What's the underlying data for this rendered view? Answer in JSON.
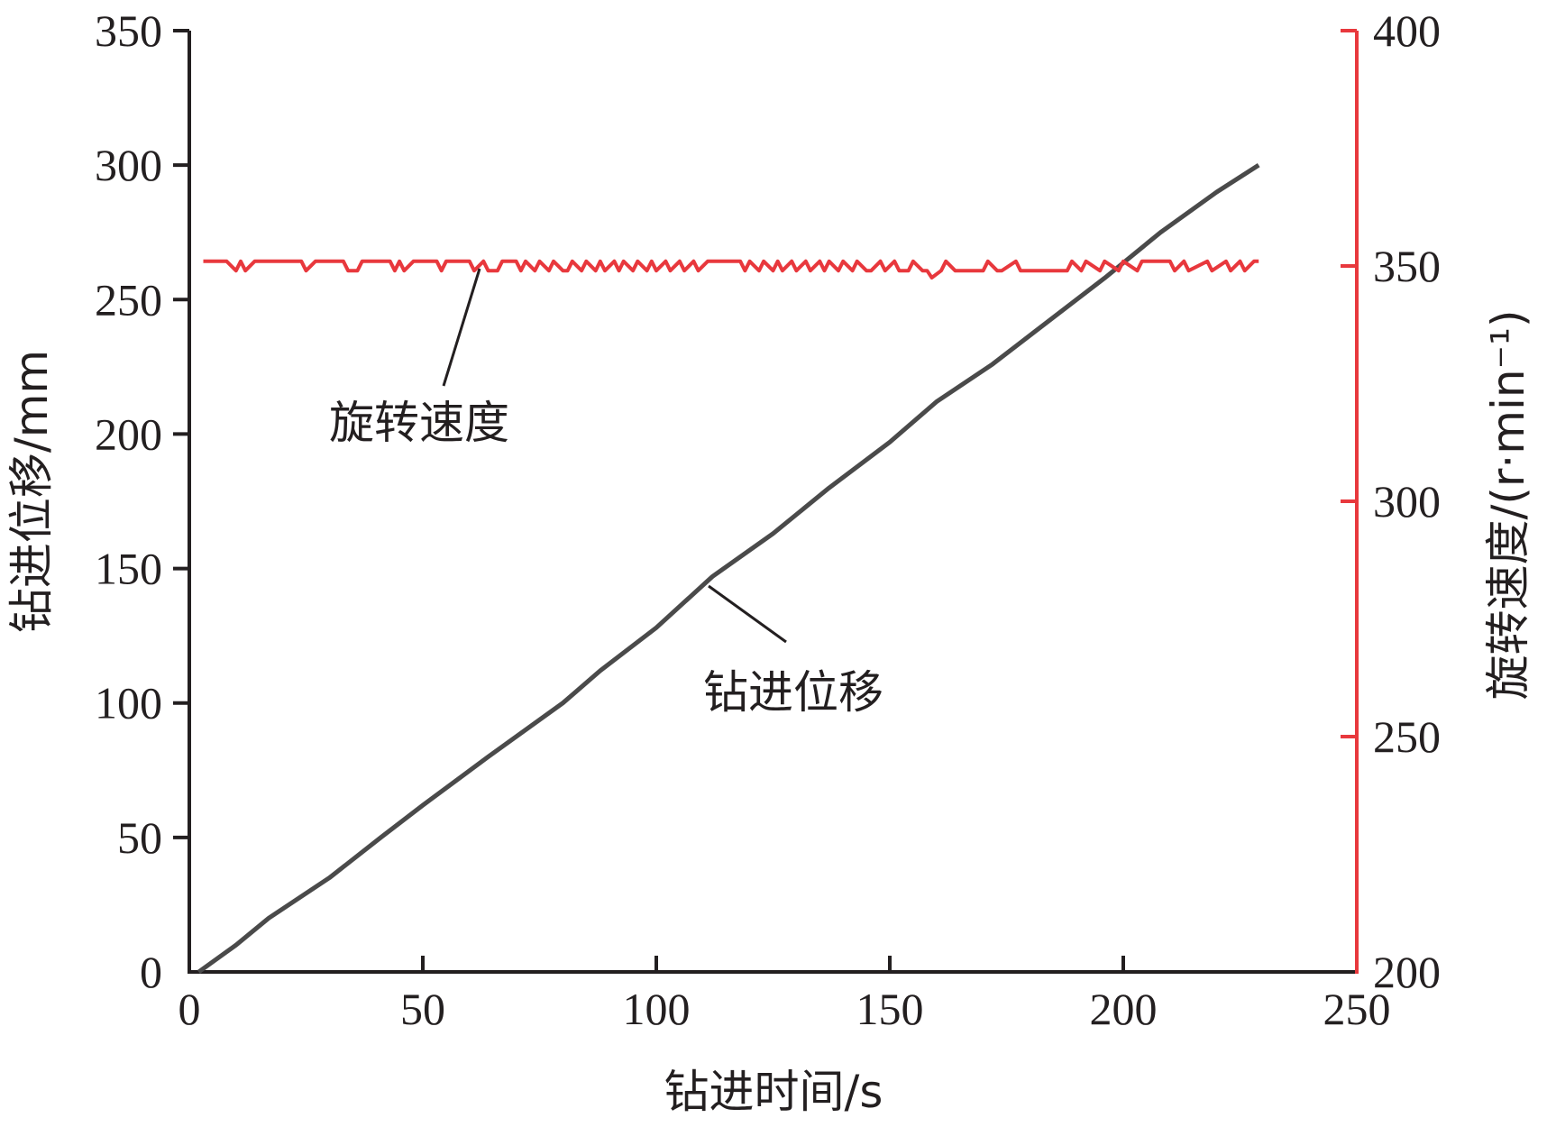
{
  "chart_data": {
    "type": "line",
    "x_label": "钻进时间/s",
    "y_left_label": "钻进位移/mm",
    "y_right_label": "旋转速度/(r·min⁻¹)",
    "x_range": [
      0,
      250
    ],
    "y_left_range": [
      0,
      350
    ],
    "y_right_range": [
      200,
      400
    ],
    "x_ticks": [
      "0",
      "50",
      "100",
      "150",
      "200",
      "250"
    ],
    "y_left_ticks": [
      "0",
      "50",
      "100",
      "150",
      "200",
      "250",
      "300",
      "350"
    ],
    "y_right_ticks": [
      "200",
      "250",
      "300",
      "350",
      "400"
    ],
    "grid": false,
    "colors": {
      "displacement": "#4a4a4a",
      "speed": "#e8383d",
      "axis": "#231f20"
    },
    "series": [
      {
        "name": "钻进位移",
        "axis": "left",
        "x": [
          2,
          10,
          17,
          30,
          41,
          50,
          64,
          80,
          88,
          100,
          112,
          125,
          137,
          150,
          160,
          172,
          184,
          196,
          208,
          220,
          229
        ],
        "y": [
          0,
          10,
          20,
          35,
          50,
          62,
          80,
          100,
          112,
          128,
          147,
          163,
          180,
          197,
          212,
          226,
          242,
          258,
          275,
          290,
          300
        ]
      },
      {
        "name": "旋转速度",
        "axis": "right",
        "x": [
          3,
          8,
          10,
          11,
          12,
          14,
          15,
          24,
          25,
          27,
          28,
          33,
          34,
          36,
          37,
          43,
          44,
          45,
          46,
          48,
          49,
          53,
          54,
          55,
          57,
          60,
          61,
          63,
          64,
          66,
          67,
          70,
          71,
          72,
          74,
          75,
          77,
          78,
          80,
          81,
          82,
          84,
          85,
          87,
          88,
          89,
          91,
          92,
          93,
          95,
          96,
          98,
          99,
          100,
          102,
          103,
          105,
          106,
          108,
          109,
          111,
          112,
          118,
          119,
          120,
          122,
          123,
          125,
          126,
          127,
          129,
          130,
          132,
          133,
          135,
          136,
          137,
          139,
          140,
          142,
          143,
          145,
          146,
          148,
          149,
          151,
          152,
          154,
          155,
          157,
          158,
          159,
          161,
          162,
          164,
          165,
          170,
          171,
          173,
          174,
          177,
          178,
          188,
          189,
          191,
          192,
          195,
          196,
          199,
          200,
          203,
          204,
          210,
          211,
          213,
          214,
          218,
          219,
          222,
          223,
          225,
          226,
          228,
          229
        ],
        "y": [
          351,
          351,
          349,
          351,
          349,
          351,
          351,
          351,
          349,
          351,
          351,
          351,
          349,
          349,
          351,
          351,
          349,
          351,
          349,
          351,
          351,
          351,
          349,
          351,
          351,
          351,
          349,
          351,
          349,
          349,
          351,
          351,
          349,
          351,
          349,
          351,
          349,
          351,
          349,
          349,
          351,
          349,
          351,
          349,
          351,
          349,
          351,
          349,
          351,
          349,
          351,
          349,
          351,
          349,
          351,
          349,
          351,
          349,
          351,
          349,
          351,
          351,
          351,
          349,
          351,
          349,
          351,
          349,
          351,
          349,
          351,
          349,
          351,
          349,
          351,
          349,
          351,
          349,
          351,
          349,
          351,
          349,
          349,
          351,
          349,
          351,
          349,
          349,
          351,
          349,
          349,
          347.5,
          349,
          351,
          349,
          349,
          349,
          351,
          349,
          349,
          351,
          349,
          349,
          351,
          349,
          351,
          349,
          351,
          349,
          351,
          349,
          351,
          351,
          349,
          351,
          349,
          351,
          349,
          351,
          349,
          351,
          349,
          351,
          351
        ]
      }
    ],
    "annotations": [
      {
        "text": "旋转速度",
        "points_to_series": "旋转速度"
      },
      {
        "text": "钻进位移",
        "points_to_series": "钻进位移"
      }
    ]
  }
}
